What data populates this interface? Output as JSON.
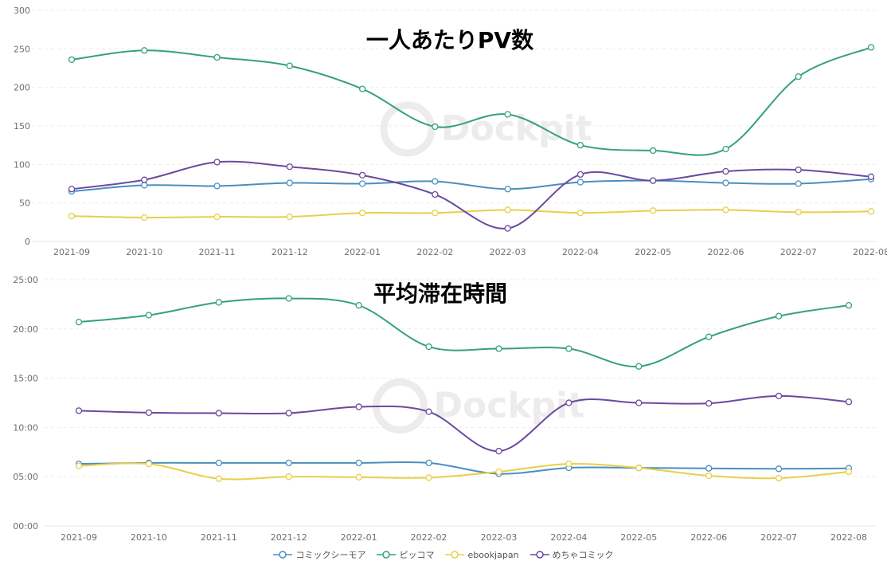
{
  "watermark": "Dockpit",
  "legend": [
    {
      "name": "コミックシーモア",
      "color": "#4a8fc0"
    },
    {
      "name": "ピッコマ",
      "color": "#35a07f"
    },
    {
      "name": "ebookjapan",
      "color": "#e8cf4a"
    },
    {
      "name": "めちゃコミック",
      "color": "#6a4a9e"
    }
  ],
  "chart_data": [
    {
      "type": "line",
      "title": "一人あたりPV数",
      "categories": [
        "2021-09",
        "2021-10",
        "2021-11",
        "2021-12",
        "2022-01",
        "2022-02",
        "2022-03",
        "2022-04",
        "2022-05",
        "2022-06",
        "2022-07",
        "2022-08"
      ],
      "ylim": [
        0,
        300
      ],
      "yticks": [
        0,
        50,
        100,
        150,
        200,
        250,
        300
      ],
      "ytick_labels": [
        "0",
        "50",
        "100",
        "150",
        "200",
        "250",
        "300"
      ],
      "grid": true,
      "smooth": true,
      "series": [
        {
          "name": "コミックシーモア",
          "values": [
            65,
            73,
            72,
            76,
            75,
            78,
            68,
            77,
            79,
            76,
            75,
            81
          ]
        },
        {
          "name": "ピッコマ",
          "values": [
            236,
            248,
            239,
            228,
            198,
            149,
            165,
            125,
            118,
            120,
            214,
            252
          ]
        },
        {
          "name": "ebookjapan",
          "values": [
            33,
            31,
            32,
            32,
            37,
            37,
            41,
            37,
            40,
            41,
            38,
            39
          ]
        },
        {
          "name": "めちゃコミック",
          "values": [
            68,
            80,
            103,
            97,
            86,
            61,
            17,
            87,
            79,
            91,
            93,
            84
          ]
        }
      ]
    },
    {
      "type": "line",
      "title": "平均滞在時間",
      "categories": [
        "2021-09",
        "2021-10",
        "2021-11",
        "2021-12",
        "2022-01",
        "2022-02",
        "2022-03",
        "2022-04",
        "2022-05",
        "2022-06",
        "2022-07",
        "2022-08"
      ],
      "yunit": "minutes",
      "ylim": [
        0,
        25
      ],
      "yticks": [
        0,
        5,
        10,
        15,
        20,
        25
      ],
      "ytick_labels": [
        "00:00",
        "05:00",
        "10:00",
        "15:00",
        "20:00",
        "25:00"
      ],
      "grid": true,
      "smooth": true,
      "series": [
        {
          "name": "コミックシーモア",
          "values": [
            6.3,
            6.4,
            6.4,
            6.4,
            6.4,
            6.4,
            5.3,
            5.9,
            5.9,
            5.85,
            5.8,
            5.85
          ]
        },
        {
          "name": "ピッコマ",
          "values": [
            20.7,
            21.4,
            22.7,
            23.1,
            22.4,
            18.2,
            18.0,
            18.0,
            16.2,
            19.2,
            21.3,
            22.4
          ]
        },
        {
          "name": "ebookjapan",
          "values": [
            6.1,
            6.3,
            4.8,
            5.0,
            4.95,
            4.9,
            5.5,
            6.3,
            5.9,
            5.1,
            4.85,
            5.5
          ]
        },
        {
          "name": "めちゃコミック",
          "values": [
            11.7,
            11.5,
            11.45,
            11.45,
            12.1,
            11.6,
            7.6,
            12.5,
            12.5,
            12.45,
            13.2,
            12.6
          ]
        }
      ]
    }
  ]
}
